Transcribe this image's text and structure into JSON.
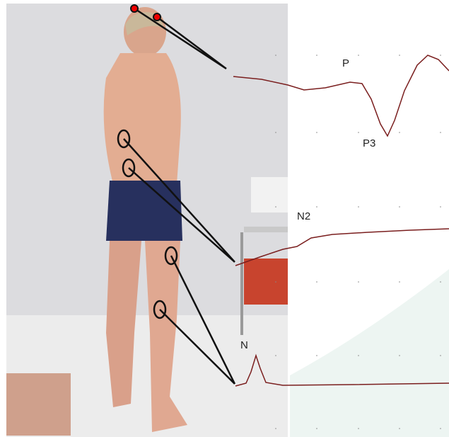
{
  "labels": {
    "p": "P",
    "p3": "P3",
    "n2": "N2",
    "n": "N"
  }
}
